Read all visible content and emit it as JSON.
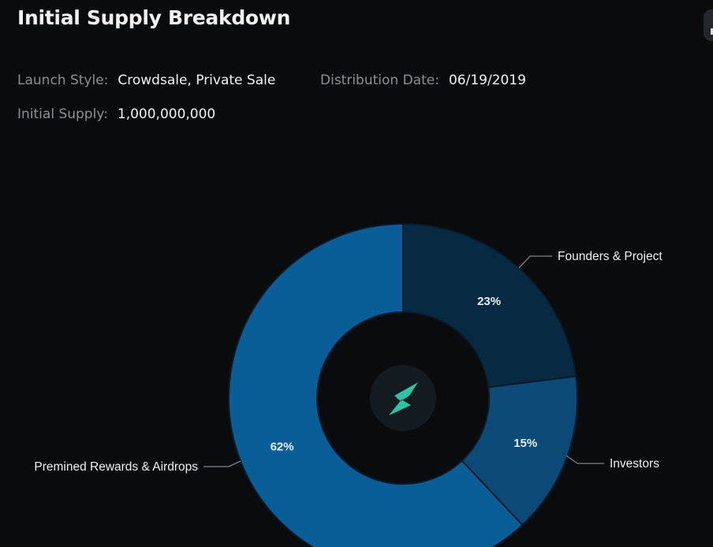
{
  "header": {
    "title": "Initial Supply Breakdown"
  },
  "info": {
    "launch_style_label": "Launch Style:",
    "launch_style": "Crowdsale, Private Sale",
    "distribution_date_label": "Distribution Date:",
    "distribution_date": "06/19/2019",
    "initial_supply_label": "Initial Supply:",
    "initial_supply": "1,000,000,000"
  },
  "chart_data": {
    "type": "pie",
    "variant": "donut",
    "title": "Initial Supply Breakdown",
    "slices": [
      {
        "name": "Founders & Project",
        "value": 23,
        "label": "23%",
        "color": "#072a42"
      },
      {
        "name": "Investors",
        "value": 15,
        "label": "15%",
        "color": "#0b4a76"
      },
      {
        "name": "Premined Rewards & Airdrops",
        "value": 62,
        "label": "62%",
        "color": "#0a5e98"
      }
    ],
    "center_icon": "lightning-logo-icon"
  }
}
